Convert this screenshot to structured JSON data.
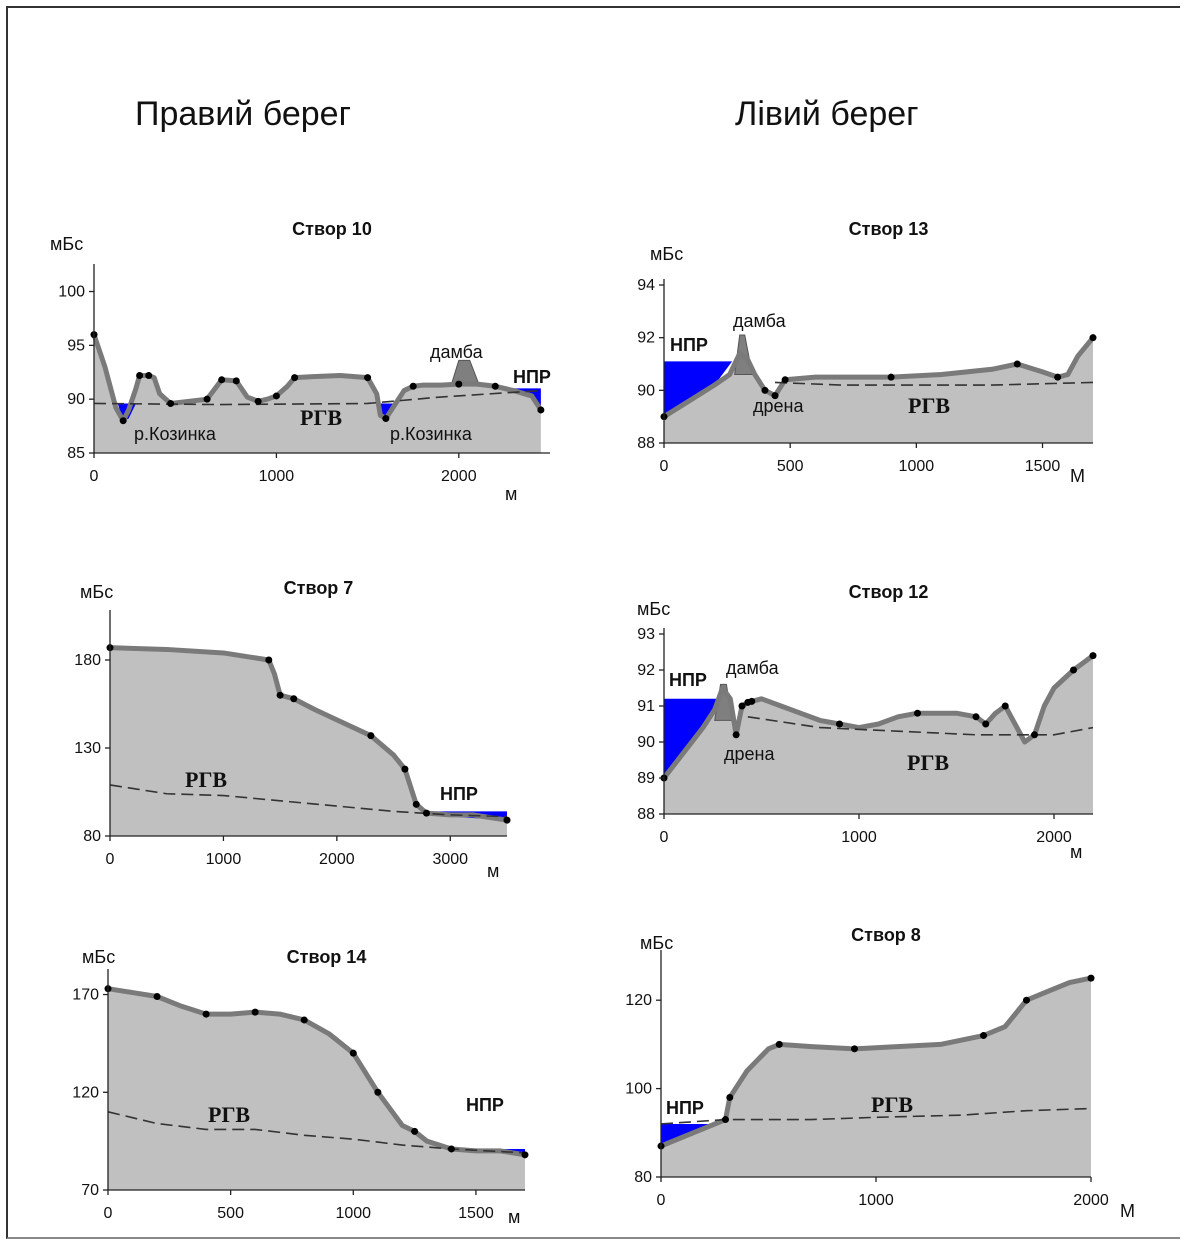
{
  "headings": {
    "right_bank": "Правий берег",
    "left_bank": "Лівий берег"
  },
  "colors": {
    "ground": "#c0c0c0",
    "profile_line": "#7a7a7a",
    "water": "#0000ff",
    "dam": "#7f7f7f",
    "point": "#000000",
    "rgv_line": "#333333"
  },
  "chart_data": [
    {
      "type": "area",
      "title": "Створ 10",
      "ylabel": "мБс",
      "xunit": "м",
      "xlim": [
        0,
        2500
      ],
      "ylim": [
        85,
        102
      ],
      "xticks": [
        0,
        1000,
        2000
      ],
      "yticks": [
        85,
        90,
        95,
        100
      ],
      "series": [
        {
          "values_x": [
            0,
            60,
            120,
            160,
            190,
            230,
            250,
            300,
            330,
            360,
            420,
            520,
            620,
            700,
            780,
            840,
            900,
            950,
            1000,
            1060,
            1100,
            1200,
            1350,
            1500,
            1550,
            1570,
            1600,
            1650,
            1700,
            1750,
            1800,
            1900,
            2000,
            2100,
            2200,
            2300,
            2400,
            2450
          ],
          "values_y": [
            96,
            93,
            89.2,
            88,
            89,
            91,
            92.2,
            92.2,
            92,
            90.5,
            89.6,
            89.8,
            90,
            91.8,
            91.7,
            90.2,
            89.8,
            90,
            90.3,
            91.2,
            92,
            92.1,
            92.2,
            92,
            90.5,
            88.5,
            88.2,
            89.5,
            90.8,
            91.2,
            91.3,
            91.3,
            91.4,
            91.4,
            91.2,
            90.8,
            90.3,
            89
          ]
        }
      ],
      "rgv": [
        [
          0,
          89.6
        ],
        [
          700,
          89.5
        ],
        [
          1500,
          89.6
        ],
        [
          1900,
          90.2
        ],
        [
          2450,
          90.8
        ]
      ],
      "water": [
        [
          [
            130,
            89.6
          ],
          [
            230,
            89.6
          ],
          [
            190,
            88.2
          ],
          [
            160,
            88
          ]
        ],
        [
          [
            1560,
            89.6
          ],
          [
            1660,
            89.6
          ],
          [
            1620,
            88.4
          ],
          [
            1590,
            88.2
          ]
        ],
        [
          [
            2240,
            91
          ],
          [
            2450,
            91
          ],
          [
            2450,
            89
          ],
          [
            2400,
            90.3
          ],
          [
            2300,
            90.8
          ]
        ]
      ],
      "points_x": [
        0,
        160,
        250,
        300,
        420,
        620,
        700,
        780,
        900,
        1000,
        1100,
        1500,
        1600,
        1750,
        2000,
        2200,
        2450
      ],
      "dam": [
        [
          1960,
          91.4
        ],
        [
          2000,
          93.6
        ],
        [
          2060,
          93.6
        ],
        [
          2110,
          91.4
        ]
      ],
      "labels": {
        "dam": "дамба",
        "npr": "НПР",
        "rgv": "РГВ",
        "river1": "р.Козинка",
        "river2": "р.Козинка"
      }
    },
    {
      "type": "area",
      "title": "Створ 13",
      "ylabel": "мБс",
      "xunit": "М",
      "xlim": [
        0,
        1700
      ],
      "ylim": [
        88,
        94
      ],
      "xticks": [
        0,
        500,
        1000,
        1500
      ],
      "yticks": [
        88,
        90,
        92,
        94
      ],
      "series": [
        {
          "values_x": [
            0,
            100,
            200,
            260,
            290,
            300,
            330,
            360,
            400,
            440,
            480,
            600,
            900,
            1100,
            1300,
            1400,
            1500,
            1560,
            1600,
            1640,
            1700
          ],
          "values_y": [
            89,
            89.6,
            90.2,
            90.6,
            91.2,
            91.4,
            91.2,
            90.6,
            90,
            89.8,
            90.4,
            90.5,
            90.5,
            90.6,
            90.8,
            91,
            90.7,
            90.5,
            90.6,
            91.3,
            92
          ]
        }
      ],
      "rgv": [
        [
          440,
          90.3
        ],
        [
          700,
          90.2
        ],
        [
          1000,
          90.2
        ],
        [
          1300,
          90.2
        ],
        [
          1700,
          90.3
        ]
      ],
      "water": [
        [
          [
            0,
            89
          ],
          [
            0,
            91.1
          ],
          [
            270,
            91.1
          ],
          [
            200,
            90.2
          ],
          [
            100,
            89.6
          ]
        ]
      ],
      "points_x": [
        0,
        400,
        440,
        480,
        900,
        1400,
        1560,
        1700
      ],
      "dam": [
        [
          280,
          90.6
        ],
        [
          300,
          92.1
        ],
        [
          320,
          92.1
        ],
        [
          350,
          90.6
        ]
      ],
      "labels": {
        "dam": "дамба",
        "npr": "НПР",
        "rgv": "РГВ",
        "drain": "дрена"
      }
    },
    {
      "type": "area",
      "title": "Створ 7",
      "ylabel": "мБс",
      "xunit": "м",
      "xlim": [
        0,
        3500
      ],
      "ylim": [
        80,
        205
      ],
      "xticks": [
        0,
        1000,
        2000,
        3000
      ],
      "yticks": [
        80,
        130,
        180
      ],
      "series": [
        {
          "values_x": [
            0,
            500,
            1000,
            1400,
            1450,
            1500,
            1620,
            1800,
            2000,
            2300,
            2500,
            2600,
            2700,
            2790,
            3000,
            3200,
            3500
          ],
          "values_y": [
            187,
            186,
            184,
            180,
            172,
            160,
            158,
            152,
            146,
            137,
            126,
            118,
            98,
            93,
            92,
            92,
            89
          ]
        }
      ],
      "rgv": [
        [
          0,
          109
        ],
        [
          500,
          104
        ],
        [
          1000,
          103
        ],
        [
          1500,
          100
        ],
        [
          2000,
          97
        ],
        [
          2500,
          94
        ],
        [
          3000,
          92
        ],
        [
          3500,
          91
        ]
      ],
      "water": [
        [
          [
            2790,
            94
          ],
          [
            3500,
            94
          ],
          [
            3500,
            89
          ],
          [
            3000,
            91
          ],
          [
            2790,
            92
          ]
        ]
      ],
      "points_x": [
        0,
        1400,
        1500,
        1620,
        2300,
        2600,
        2700,
        2790,
        3500
      ],
      "labels": {
        "npr": "НПР",
        "rgv": "РГВ"
      }
    },
    {
      "type": "area",
      "title": "Створ 12",
      "ylabel": "мБс",
      "xunit": "м",
      "xlim": [
        0,
        2200
      ],
      "ylim": [
        88,
        93
      ],
      "xticks": [
        0,
        1000,
        2000
      ],
      "yticks": [
        88,
        89,
        90,
        91,
        92,
        93
      ],
      "series": [
        {
          "values_x": [
            0,
            100,
            200,
            260,
            300,
            340,
            370,
            400,
            430,
            500,
            600,
            700,
            800,
            900,
            1000,
            1100,
            1200,
            1300,
            1400,
            1500,
            1600,
            1650,
            1700,
            1750,
            1800,
            1850,
            1900,
            1950,
            2000,
            2100,
            2200
          ],
          "values_y": [
            89,
            89.7,
            90.4,
            90.9,
            91.5,
            91.2,
            90.2,
            91,
            91.1,
            91.2,
            91,
            90.8,
            90.6,
            90.5,
            90.4,
            90.5,
            90.7,
            90.8,
            90.8,
            90.8,
            90.7,
            90.5,
            90.8,
            91,
            90.5,
            90,
            90.2,
            91,
            91.5,
            92,
            92.4
          ]
        }
      ],
      "rgv": [
        [
          430,
          90.7
        ],
        [
          800,
          90.4
        ],
        [
          1200,
          90.3
        ],
        [
          1600,
          90.2
        ],
        [
          2000,
          90.2
        ],
        [
          2200,
          90.4
        ]
      ],
      "water": [
        [
          [
            0,
            89
          ],
          [
            0,
            91.2
          ],
          [
            280,
            91.2
          ],
          [
            200,
            90.4
          ],
          [
            100,
            89.7
          ]
        ]
      ],
      "points_x": [
        0,
        370,
        400,
        430,
        450,
        900,
        1300,
        1600,
        1650,
        1750,
        1900,
        2100,
        2200
      ],
      "dam": [
        [
          260,
          90.6
        ],
        [
          290,
          91.6
        ],
        [
          320,
          91.6
        ],
        [
          350,
          90.6
        ]
      ],
      "labels": {
        "dam": "дамба",
        "npr": "НПР",
        "rgv": "РГВ",
        "drain": "дрена"
      }
    },
    {
      "type": "area",
      "title": "Створ 14",
      "ylabel": "мБс",
      "xunit": "м",
      "xlim": [
        0,
        1700
      ],
      "ylim": [
        70,
        180
      ],
      "xticks": [
        0,
        500,
        1000,
        1500
      ],
      "yticks": [
        70,
        120,
        170
      ],
      "series": [
        {
          "values_x": [
            0,
            100,
            200,
            300,
            400,
            500,
            600,
            700,
            800,
            900,
            1000,
            1100,
            1200,
            1250,
            1300,
            1400,
            1500,
            1600,
            1700
          ],
          "values_y": [
            173,
            171,
            169,
            164,
            160,
            160,
            161,
            160,
            157,
            150,
            140,
            120,
            103,
            100,
            95,
            91,
            90,
            90,
            88
          ]
        }
      ],
      "rgv": [
        [
          0,
          110
        ],
        [
          200,
          104
        ],
        [
          400,
          101
        ],
        [
          600,
          101
        ],
        [
          800,
          98
        ],
        [
          1000,
          96
        ],
        [
          1200,
          93
        ],
        [
          1400,
          91
        ],
        [
          1700,
          89
        ]
      ],
      "water": [
        [
          [
            1400,
            91
          ],
          [
            1700,
            91
          ],
          [
            1700,
            88
          ],
          [
            1400,
            90.5
          ]
        ]
      ],
      "points_x": [
        0,
        200,
        400,
        600,
        800,
        1000,
        1100,
        1250,
        1400,
        1700
      ],
      "labels": {
        "npr": "НПР",
        "rgv": "РГВ"
      }
    },
    {
      "type": "area",
      "title": "Створ 8",
      "ylabel": "мБс",
      "xunit": "М",
      "xlim": [
        0,
        2000
      ],
      "ylim": [
        80,
        130
      ],
      "xticks": [
        0,
        1000,
        2000
      ],
      "yticks": [
        80,
        100,
        120
      ],
      "series": [
        {
          "values_x": [
            0,
            100,
            200,
            300,
            320,
            400,
            500,
            550,
            700,
            900,
            1100,
            1300,
            1500,
            1600,
            1700,
            1800,
            1900,
            2000
          ],
          "values_y": [
            87,
            89,
            91,
            93,
            98,
            104,
            109,
            110,
            109.5,
            109,
            109.5,
            110,
            112,
            114,
            120,
            122,
            124,
            125
          ]
        }
      ],
      "rgv": [
        [
          0,
          92
        ],
        [
          300,
          93
        ],
        [
          700,
          93
        ],
        [
          1000,
          93.5
        ],
        [
          1400,
          94
        ],
        [
          1700,
          95
        ],
        [
          2000,
          95.5
        ]
      ],
      "water": [
        [
          [
            0,
            87
          ],
          [
            0,
            92
          ],
          [
            280,
            92
          ],
          [
            200,
            91
          ],
          [
            100,
            89
          ]
        ]
      ],
      "points_x": [
        0,
        300,
        320,
        550,
        900,
        1500,
        1700,
        2000
      ],
      "labels": {
        "npr": "НПР",
        "rgv": "РГВ"
      }
    }
  ]
}
